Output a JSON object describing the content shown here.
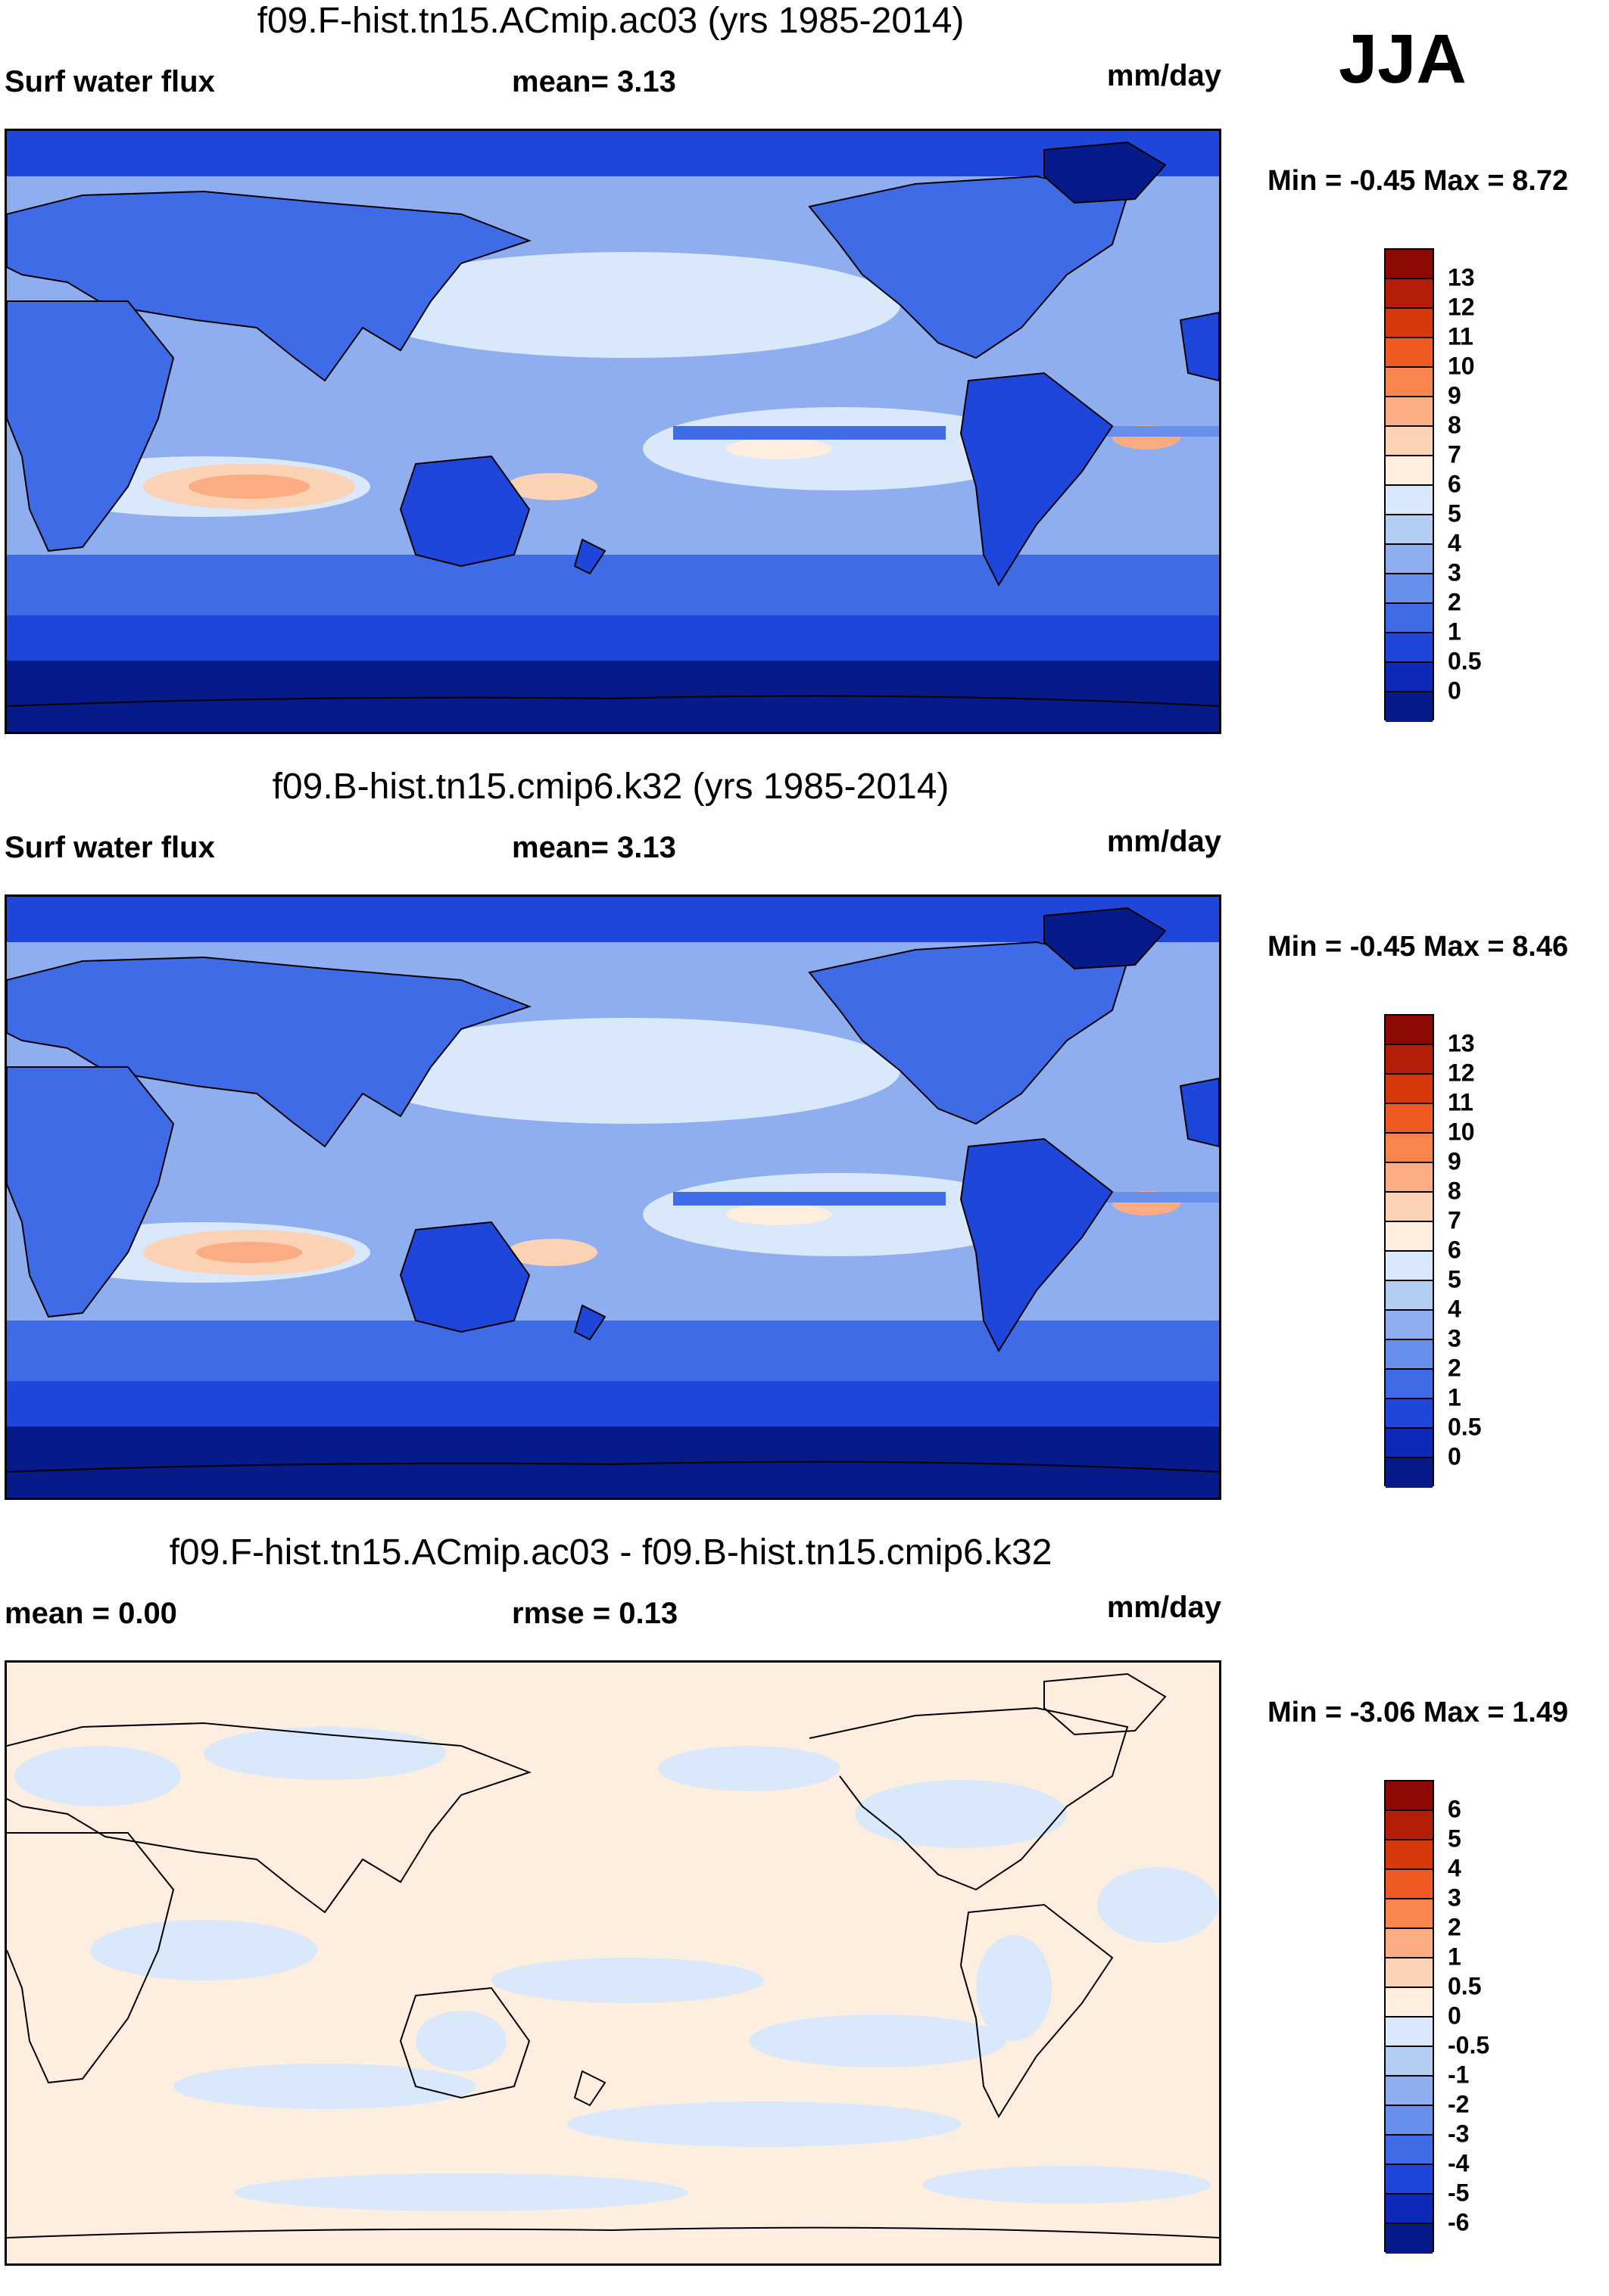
{
  "season": "JJA",
  "panels": [
    {
      "title": "f09.F-hist.tn15.ACmip.ac03 (yrs 1985-2014)",
      "left_label": "Surf water flux",
      "mid_label": "mean=   3.13",
      "units": "mm/day",
      "minmax": "Min =  -0.45 Max =   8.72",
      "colorbar": {
        "colors": [
          "#8b0a04",
          "#b41e08",
          "#d4380c",
          "#ee5a22",
          "#f9854e",
          "#fbac82",
          "#fcd2b4",
          "#fdeee0",
          "#d9e9fb",
          "#b3cdf5",
          "#8eaef0",
          "#6690ec",
          "#3f6be6",
          "#1e46da",
          "#0e28b8",
          "#061a8a"
        ],
        "ticks": [
          "13",
          "12",
          "11",
          "10",
          "9",
          "8",
          "7",
          "6",
          "5",
          "4",
          "3",
          "2",
          "1",
          "0.5",
          "0"
        ]
      }
    },
    {
      "title": "f09.B-hist.tn15.cmip6.k32 (yrs 1985-2014)",
      "left_label": "Surf water flux",
      "mid_label": "mean=   3.13",
      "units": "mm/day",
      "minmax": "Min =  -0.45 Max =   8.46",
      "colorbar": {
        "colors": [
          "#8b0a04",
          "#b41e08",
          "#d4380c",
          "#ee5a22",
          "#f9854e",
          "#fbac82",
          "#fcd2b4",
          "#fdeee0",
          "#d9e9fb",
          "#b3cdf5",
          "#8eaef0",
          "#6690ec",
          "#3f6be6",
          "#1e46da",
          "#0e28b8",
          "#061a8a"
        ],
        "ticks": [
          "13",
          "12",
          "11",
          "10",
          "9",
          "8",
          "7",
          "6",
          "5",
          "4",
          "3",
          "2",
          "1",
          "0.5",
          "0"
        ]
      }
    },
    {
      "title": "f09.F-hist.tn15.ACmip.ac03 - f09.B-hist.tn15.cmip6.k32",
      "left_label": "mean =   0.00",
      "mid_label": "rmse =   0.13",
      "units": "mm/day",
      "minmax": "Min =  -3.06 Max =   1.49",
      "colorbar": {
        "colors": [
          "#8b0a04",
          "#b41e08",
          "#d4380c",
          "#ee5a22",
          "#f9854e",
          "#fbac82",
          "#fcd2b4",
          "#fdeee0",
          "#d9e9fb",
          "#b3cdf5",
          "#8eaef0",
          "#6690ec",
          "#3f6be6",
          "#1e46da",
          "#0e28b8",
          "#061a8a"
        ],
        "ticks": [
          "6",
          "5",
          "4",
          "3",
          "2",
          "1",
          "0.5",
          "0",
          "-0.5",
          "-1",
          "-2",
          "-3",
          "-4",
          "-5",
          "-6"
        ]
      }
    }
  ],
  "chart_data": [
    {
      "type": "heatmap",
      "title": "f09.F-hist.tn15.ACmip.ac03 (yrs 1985-2014)",
      "variable": "Surf water flux",
      "units": "mm/day",
      "season": "JJA",
      "mean": 3.13,
      "min": -0.45,
      "max": 8.72,
      "contour_levels": [
        0,
        0.5,
        1,
        2,
        3,
        4,
        5,
        6,
        7,
        8,
        9,
        10,
        11,
        12,
        13
      ],
      "xlim": [
        0,
        360
      ],
      "ylim": [
        -90,
        90
      ]
    },
    {
      "type": "heatmap",
      "title": "f09.B-hist.tn15.cmip6.k32 (yrs 1985-2014)",
      "variable": "Surf water flux",
      "units": "mm/day",
      "season": "JJA",
      "mean": 3.13,
      "min": -0.45,
      "max": 8.46,
      "contour_levels": [
        0,
        0.5,
        1,
        2,
        3,
        4,
        5,
        6,
        7,
        8,
        9,
        10,
        11,
        12,
        13
      ],
      "xlim": [
        0,
        360
      ],
      "ylim": [
        -90,
        90
      ]
    },
    {
      "type": "heatmap",
      "title": "f09.F-hist.tn15.ACmip.ac03 - f09.B-hist.tn15.cmip6.k32",
      "units": "mm/day",
      "season": "JJA",
      "mean": 0.0,
      "rmse": 0.13,
      "min": -3.06,
      "max": 1.49,
      "contour_levels": [
        -6,
        -5,
        -4,
        -3,
        -2,
        -1,
        -0.5,
        0,
        0.5,
        1,
        2,
        3,
        4,
        5,
        6
      ],
      "xlim": [
        0,
        360
      ],
      "ylim": [
        -90,
        90
      ]
    }
  ]
}
